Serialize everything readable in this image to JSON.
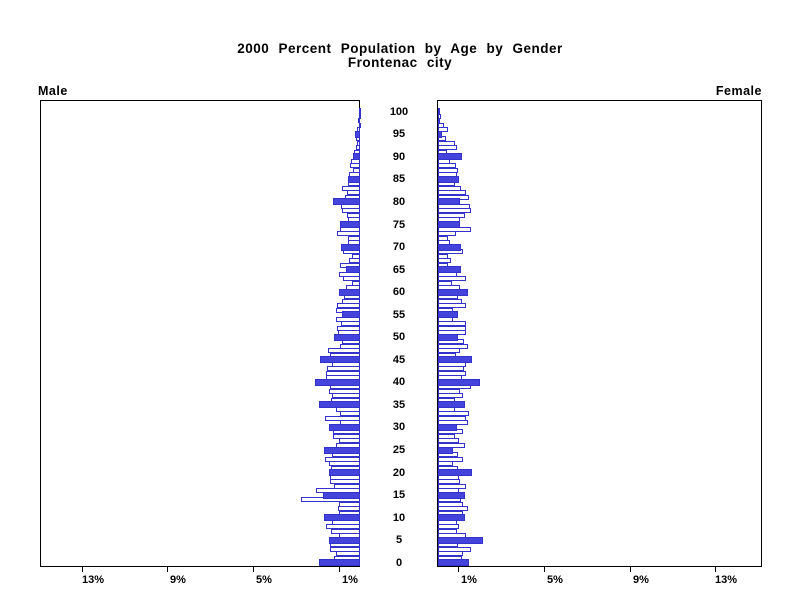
{
  "title": {
    "line1": "2000 Percent Population by Age by Gender",
    "line2": "Frontenac city"
  },
  "panel_labels": {
    "left": "Male",
    "right": "Female"
  },
  "chart_data": {
    "type": "bar",
    "subtype": "population-pyramid",
    "title": "2000 Percent Population by Age by Gender",
    "subtitle": "Frontenac city",
    "orientation": "horizontal, male bars extend left, female bars extend right",
    "x_unit": "percent of population",
    "age_min": 0,
    "age_max": 100,
    "age_axis": {
      "ticks": [
        0,
        5,
        10,
        15,
        20,
        25,
        30,
        35,
        40,
        45,
        50,
        55,
        60,
        65,
        70,
        75,
        80,
        85,
        90,
        95,
        100
      ],
      "position": "center"
    },
    "pct_axis": {
      "tick_values": [
        1,
        5,
        9,
        13
      ],
      "tick_labels": [
        "1%",
        "5%",
        "9%",
        "13%"
      ],
      "max": 15,
      "grid": false
    },
    "highlight_rule": "bars for ages divisible by 5 are filled blue; other ages are white with blue outline",
    "series": [
      {
        "name": "Male",
        "values": [
          1.9,
          1.2,
          1.1,
          1.4,
          1.4,
          1.45,
          1.0,
          1.35,
          1.6,
          1.3,
          1.7,
          1.0,
          1.05,
          1.0,
          2.75,
          1.75,
          2.05,
          1.2,
          1.4,
          1.4,
          1.45,
          1.35,
          1.45,
          1.65,
          1.3,
          1.7,
          1.1,
          1.0,
          1.25,
          1.25,
          1.45,
          0.95,
          1.65,
          0.95,
          1.1,
          1.9,
          1.35,
          1.3,
          1.45,
          1.4,
          2.1,
          1.6,
          1.6,
          1.55,
          1.3,
          1.85,
          1.4,
          1.5,
          0.95,
          0.85,
          1.2,
          1.05,
          1.06,
          0.9,
          1.12,
          0.85,
          1.12,
          1.06,
          0.85,
          0.74,
          0.96,
          0.65,
          0.39,
          0.78,
          1.0,
          0.65,
          0.93,
          0.5,
          0.39,
          0.78,
          0.9,
          0.55,
          0.54,
          1.07,
          0.93,
          0.95,
          0.55,
          0.6,
          0.85,
          0.9,
          1.26,
          0.7,
          0.6,
          0.85,
          0.56,
          0.55,
          0.5,
          0.35,
          0.45,
          0.4,
          0.35,
          0.3,
          0.2,
          0.15,
          0.2,
          0.25,
          0.12,
          0.07,
          0.1,
          0.07,
          0.05
        ]
      },
      {
        "name": "Female",
        "values": [
          1.43,
          1.1,
          1.15,
          1.55,
          0.95,
          2.1,
          1.33,
          0.87,
          0.98,
          0.87,
          1.25,
          1.18,
          1.38,
          1.15,
          1.07,
          1.26,
          0.98,
          1.33,
          1.02,
          1.0,
          1.6,
          0.95,
          0.71,
          1.18,
          0.92,
          0.71,
          1.26,
          0.98,
          0.79,
          1.18,
          0.87,
          1.38,
          1.33,
          1.46,
          0.79,
          1.26,
          0.79,
          1.18,
          1.02,
          1.55,
          1.95,
          1.13,
          1.33,
          1.22,
          1.33,
          1.6,
          0.82,
          1.02,
          1.38,
          1.22,
          0.92,
          1.33,
          1.33,
          1.29,
          0.71,
          0.92,
          0.71,
          1.33,
          1.1,
          0.92,
          1.38,
          1.02,
          0.64,
          1.29,
          0.87,
          1.07,
          0.48,
          0.6,
          0.48,
          1.18,
          1.07,
          0.55,
          0.45,
          0.84,
          1.53,
          1.02,
          1.02,
          1.25,
          1.55,
          1.49,
          1.02,
          1.44,
          1.33,
          1.07,
          0.79,
          0.98,
          0.9,
          0.92,
          0.82,
          0.56,
          1.13,
          0.4,
          0.87,
          0.79,
          0.37,
          0.2,
          0.45,
          0.3,
          0.1,
          0.15,
          0.1
        ]
      }
    ],
    "colors": {
      "bar_fill": "#4444DD",
      "bar_stroke": "#3333CC",
      "axis": "#000000",
      "text": "#000000",
      "background": "#FFFFFF"
    }
  }
}
